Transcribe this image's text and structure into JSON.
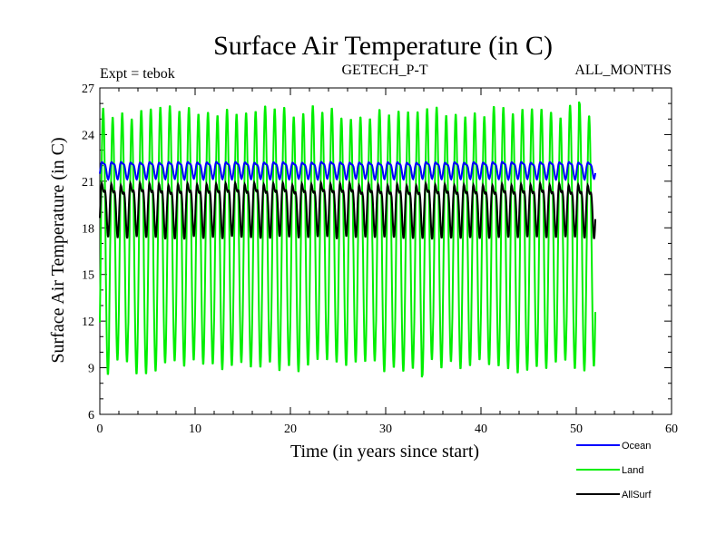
{
  "chart_data": {
    "type": "line",
    "title": "Surface Air Temperature (in C)",
    "subtitle_left": "Expt = tebok",
    "subtitle_center": "GETECH_P-T",
    "subtitle_right": "ALL_MONTHS",
    "xlabel": "Time (in years since start)",
    "ylabel": "Surface Air Temperature (in C)",
    "xlim": [
      0,
      60
    ],
    "ylim": [
      6,
      27
    ],
    "xticks": [
      0,
      10,
      20,
      30,
      40,
      50,
      60
    ],
    "yticks": [
      6,
      9,
      12,
      15,
      18,
      21,
      24,
      27
    ],
    "x_start": 0,
    "x_end": 52,
    "samples_per_year": 12,
    "legend_position": "bottom-right, below plot",
    "series": [
      {
        "name": "Ocean",
        "color": "#0000ff",
        "seasonal_min": 21.3,
        "seasonal_max": 22.3,
        "secondary_peak": 0.35,
        "description": "annual cycle 21.3 to 22.3, small semiannual wiggle"
      },
      {
        "name": "Land",
        "color": "#00ee00",
        "seasonal_min": 9.0,
        "seasonal_max": 25.5,
        "extremes": {
          "max": 26.7,
          "max_year": 50,
          "min": 7.8,
          "min_year": 33.5
        },
        "description": "large annual cycle roughly 9 to 25.5"
      },
      {
        "name": "AllSurf",
        "color": "#000000",
        "seasonal_min": 18.0,
        "seasonal_max": 21.0,
        "secondary_peak": 0.45,
        "description": "annual cycle 18 to 21 with secondary wiggle"
      }
    ]
  }
}
